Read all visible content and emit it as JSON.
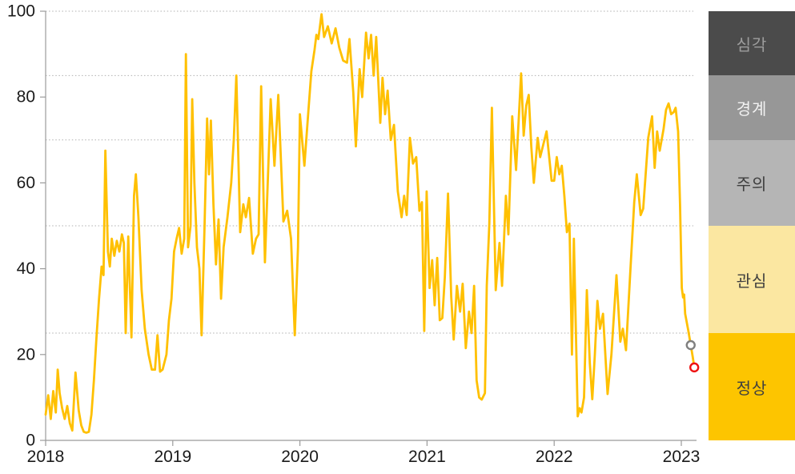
{
  "chart_data": {
    "type": "line",
    "title": "",
    "xlabel": "",
    "ylabel": "",
    "x_ticks": [
      2018,
      2019,
      2020,
      2021,
      2022,
      2023
    ],
    "y_ticks": [
      0,
      20,
      40,
      60,
      80,
      100
    ],
    "xlim": [
      2018.0,
      2023.18
    ],
    "ylim": [
      0,
      100
    ],
    "grid": "dotted horizontal",
    "gridline_values": [
      25,
      50,
      70,
      85,
      100
    ],
    "series": [
      {
        "name": "index-line",
        "color": "#FFC000",
        "points": [
          [
            2018.0,
            6
          ],
          [
            2018.02,
            10.5
          ],
          [
            2018.04,
            5
          ],
          [
            2018.06,
            11.5
          ],
          [
            2018.08,
            6.5
          ],
          [
            2018.095,
            16.5
          ],
          [
            2018.11,
            11
          ],
          [
            2018.13,
            7.5
          ],
          [
            2018.15,
            5
          ],
          [
            2018.17,
            8
          ],
          [
            2018.19,
            4
          ],
          [
            2018.21,
            2.3
          ],
          [
            2018.235,
            15.8
          ],
          [
            2018.26,
            7
          ],
          [
            2018.28,
            3.5
          ],
          [
            2018.3,
            2
          ],
          [
            2018.32,
            1.8
          ],
          [
            2018.34,
            2
          ],
          [
            2018.36,
            6
          ],
          [
            2018.38,
            14
          ],
          [
            2018.4,
            24
          ],
          [
            2018.42,
            33
          ],
          [
            2018.44,
            40.5
          ],
          [
            2018.455,
            38.5
          ],
          [
            2018.47,
            67.5
          ],
          [
            2018.49,
            44
          ],
          [
            2018.505,
            40.5
          ],
          [
            2018.52,
            47
          ],
          [
            2018.54,
            43
          ],
          [
            2018.56,
            46.5
          ],
          [
            2018.58,
            44
          ],
          [
            2018.6,
            48
          ],
          [
            2018.615,
            46
          ],
          [
            2018.63,
            25
          ],
          [
            2018.65,
            47.5
          ],
          [
            2018.675,
            24
          ],
          [
            2018.695,
            57
          ],
          [
            2018.71,
            62
          ],
          [
            2018.73,
            52
          ],
          [
            2018.755,
            35
          ],
          [
            2018.78,
            26
          ],
          [
            2018.81,
            20
          ],
          [
            2018.835,
            16.5
          ],
          [
            2018.86,
            16.5
          ],
          [
            2018.88,
            24.5
          ],
          [
            2018.9,
            16
          ],
          [
            2018.92,
            16.5
          ],
          [
            2018.95,
            20
          ],
          [
            2018.97,
            28
          ],
          [
            2018.99,
            33
          ],
          [
            2019.01,
            44
          ],
          [
            2019.03,
            47
          ],
          [
            2019.05,
            49.5
          ],
          [
            2019.07,
            43.5
          ],
          [
            2019.09,
            47
          ],
          [
            2019.103,
            90
          ],
          [
            2019.12,
            45
          ],
          [
            2019.14,
            50
          ],
          [
            2019.153,
            79.5
          ],
          [
            2019.17,
            60
          ],
          [
            2019.19,
            45
          ],
          [
            2019.21,
            40
          ],
          [
            2019.227,
            24.5
          ],
          [
            2019.25,
            50
          ],
          [
            2019.27,
            75
          ],
          [
            2019.285,
            62
          ],
          [
            2019.3,
            74.5
          ],
          [
            2019.32,
            55
          ],
          [
            2019.34,
            41
          ],
          [
            2019.36,
            51.5
          ],
          [
            2019.38,
            33
          ],
          [
            2019.4,
            45
          ],
          [
            2019.43,
            52
          ],
          [
            2019.46,
            60
          ],
          [
            2019.48,
            70
          ],
          [
            2019.5,
            85
          ],
          [
            2019.53,
            48.5
          ],
          [
            2019.555,
            55
          ],
          [
            2019.575,
            52
          ],
          [
            2019.6,
            56.5
          ],
          [
            2019.63,
            43.5
          ],
          [
            2019.655,
            47
          ],
          [
            2019.675,
            48
          ],
          [
            2019.695,
            82.5
          ],
          [
            2019.725,
            41.5
          ],
          [
            2019.77,
            79.5
          ],
          [
            2019.8,
            64
          ],
          [
            2019.83,
            80.5
          ],
          [
            2019.87,
            51
          ],
          [
            2019.9,
            53.5
          ],
          [
            2019.93,
            47
          ],
          [
            2019.96,
            24.5
          ],
          [
            2019.985,
            45
          ],
          [
            2020.0,
            76
          ],
          [
            2020.035,
            64
          ],
          [
            2020.06,
            74
          ],
          [
            2020.09,
            86
          ],
          [
            2020.115,
            91
          ],
          [
            2020.13,
            94.5
          ],
          [
            2020.145,
            93.5
          ],
          [
            2020.17,
            99.3
          ],
          [
            2020.19,
            94
          ],
          [
            2020.22,
            96.5
          ],
          [
            2020.25,
            92.5
          ],
          [
            2020.28,
            96
          ],
          [
            2020.31,
            91.5
          ],
          [
            2020.34,
            88.5
          ],
          [
            2020.37,
            88
          ],
          [
            2020.39,
            93.5
          ],
          [
            2020.42,
            81
          ],
          [
            2020.44,
            68.5
          ],
          [
            2020.47,
            86.5
          ],
          [
            2020.49,
            80
          ],
          [
            2020.52,
            95
          ],
          [
            2020.54,
            89
          ],
          [
            2020.56,
            94.5
          ],
          [
            2020.58,
            85
          ],
          [
            2020.6,
            94
          ],
          [
            2020.632,
            74
          ],
          [
            2020.65,
            84.5
          ],
          [
            2020.67,
            76
          ],
          [
            2020.69,
            81.5
          ],
          [
            2020.715,
            70
          ],
          [
            2020.74,
            73.5
          ],
          [
            2020.77,
            58
          ],
          [
            2020.8,
            52
          ],
          [
            2020.82,
            57
          ],
          [
            2020.84,
            52.5
          ],
          [
            2020.865,
            70.5
          ],
          [
            2020.89,
            64.5
          ],
          [
            2020.915,
            66
          ],
          [
            2020.94,
            53.5
          ],
          [
            2020.96,
            55.5
          ],
          [
            2020.978,
            25.5
          ],
          [
            2020.997,
            58
          ],
          [
            2021.02,
            35.5
          ],
          [
            2021.04,
            42
          ],
          [
            2021.06,
            31.5
          ],
          [
            2021.08,
            42.5
          ],
          [
            2021.1,
            28
          ],
          [
            2021.12,
            28.5
          ],
          [
            2021.14,
            38
          ],
          [
            2021.165,
            57.5
          ],
          [
            2021.19,
            33.5
          ],
          [
            2021.21,
            23.5
          ],
          [
            2021.235,
            36
          ],
          [
            2021.26,
            30
          ],
          [
            2021.28,
            36.5
          ],
          [
            2021.305,
            21.5
          ],
          [
            2021.33,
            30
          ],
          [
            2021.35,
            25
          ],
          [
            2021.37,
            36
          ],
          [
            2021.39,
            14
          ],
          [
            2021.41,
            10
          ],
          [
            2021.43,
            9.5
          ],
          [
            2021.455,
            11
          ],
          [
            2021.47,
            36
          ],
          [
            2021.49,
            50.5
          ],
          [
            2021.51,
            77.5
          ],
          [
            2021.54,
            35
          ],
          [
            2021.57,
            46
          ],
          [
            2021.59,
            36
          ],
          [
            2021.62,
            57
          ],
          [
            2021.64,
            48
          ],
          [
            2021.67,
            75.5
          ],
          [
            2021.7,
            63
          ],
          [
            2021.74,
            85.5
          ],
          [
            2021.76,
            71
          ],
          [
            2021.78,
            78
          ],
          [
            2021.8,
            80.5
          ],
          [
            2021.82,
            68.5
          ],
          [
            2021.84,
            60
          ],
          [
            2021.87,
            70.5
          ],
          [
            2021.89,
            66
          ],
          [
            2021.94,
            72
          ],
          [
            2021.98,
            60.5
          ],
          [
            2022.0,
            60.5
          ],
          [
            2022.02,
            66
          ],
          [
            2022.04,
            62
          ],
          [
            2022.06,
            64
          ],
          [
            2022.08,
            57
          ],
          [
            2022.1,
            48.5
          ],
          [
            2022.12,
            50.5
          ],
          [
            2022.14,
            20
          ],
          [
            2022.155,
            47
          ],
          [
            2022.185,
            5.6
          ],
          [
            2022.2,
            7.5
          ],
          [
            2022.215,
            6.5
          ],
          [
            2022.235,
            10
          ],
          [
            2022.257,
            35
          ],
          [
            2022.28,
            18
          ],
          [
            2022.3,
            9.6
          ],
          [
            2022.32,
            20
          ],
          [
            2022.34,
            32.5
          ],
          [
            2022.36,
            26
          ],
          [
            2022.384,
            29.5
          ],
          [
            2022.42,
            10.8
          ],
          [
            2022.45,
            20
          ],
          [
            2022.49,
            38.5
          ],
          [
            2022.52,
            23
          ],
          [
            2022.54,
            26
          ],
          [
            2022.565,
            21
          ],
          [
            2022.6,
            40
          ],
          [
            2022.63,
            55.5
          ],
          [
            2022.65,
            62
          ],
          [
            2022.68,
            52.5
          ],
          [
            2022.7,
            54
          ],
          [
            2022.74,
            70.5
          ],
          [
            2022.77,
            75.5
          ],
          [
            2022.79,
            63.5
          ],
          [
            2022.81,
            72
          ],
          [
            2022.83,
            67.5
          ],
          [
            2022.86,
            72.5
          ],
          [
            2022.88,
            77
          ],
          [
            2022.9,
            78.5
          ],
          [
            2022.92,
            76
          ],
          [
            2022.94,
            76.5
          ],
          [
            2022.955,
            77.5
          ],
          [
            2022.975,
            72
          ],
          [
            2022.99,
            55
          ],
          [
            2023.004,
            35.5
          ],
          [
            2023.014,
            33.3
          ],
          [
            2023.022,
            34
          ],
          [
            2023.03,
            29.5
          ],
          [
            2023.055,
            25.6
          ],
          [
            2023.074,
            22.2
          ],
          [
            2023.09,
            19.4
          ],
          [
            2023.102,
            17
          ]
        ]
      }
    ],
    "end_markers": [
      {
        "name": "previous-point-marker",
        "x": 2023.074,
        "y": 22.2,
        "stroke": "#7f7f7f"
      },
      {
        "name": "latest-point-marker",
        "x": 2023.102,
        "y": 17.0,
        "stroke": "#ee1111"
      }
    ],
    "legend_position": "right vertical band scale",
    "legend_bands": [
      {
        "key": "severe",
        "label": "심각",
        "from": 85,
        "to": 100,
        "bg": "#4b4b4b",
        "text_color": "#9d9d9d"
      },
      {
        "key": "alert",
        "label": "경계",
        "from": 70,
        "to": 85,
        "bg": "#979797",
        "text_color": "#f2f2f2"
      },
      {
        "key": "caution",
        "label": "주의",
        "from": 50,
        "to": 70,
        "bg": "#b5b5b5",
        "text_color": "#3f3f3f"
      },
      {
        "key": "watch",
        "label": "관심",
        "from": 25,
        "to": 50,
        "bg": "#fbe7a1",
        "text_color": "#3f3f3f"
      },
      {
        "key": "normal",
        "label": "정상",
        "from": 0,
        "to": 25,
        "bg": "#fdc500",
        "text_color": "#3f3f3f"
      }
    ],
    "colors": {
      "line": "#FFC000",
      "axis": "#9b9b9b",
      "gridline": "#b0b0b0",
      "tick_label": "#1a1a1a",
      "marker_fill": "#ffffff"
    }
  }
}
